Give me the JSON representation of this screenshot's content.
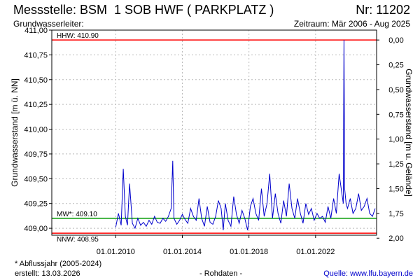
{
  "header": {
    "station_label": "Messstelle: BSM  1 SOB HWF ( PARKPLATZ )",
    "number_label": "Nr: 11202",
    "aquifer_label": "Grundwasserleiter:",
    "period_label": "Zeitraum: Mär 2006 - Aug 2025"
  },
  "footer": {
    "note": "* Abflussjahr (2005-2024)",
    "created": "erstellt:  13.03.2026",
    "raw": "- Rohdaten -",
    "source": "Quelle: www.lfu.bayern.de"
  },
  "colors": {
    "series": "#0000cc",
    "hhw_line": "#ff0000",
    "nnw_line": "#ff0000",
    "mw_line": "#009900",
    "axis": "#000000",
    "grid": "#bbbbbb"
  },
  "chart_data": {
    "type": "line",
    "title": "",
    "ylabel": "Grundwasserstand [m ü. NN]",
    "y2label": "Grundwasserstand [m u. Gelände]",
    "ylim": [
      408.93,
      411.0
    ],
    "yticks": [
      409.0,
      409.25,
      409.5,
      409.75,
      410.0,
      410.25,
      410.5,
      410.75,
      411.0
    ],
    "ytick_labels": [
      "409,00",
      "409,25",
      "409,50",
      "409,75",
      "410,00",
      "410,25",
      "410,50",
      "410,75",
      "411,00"
    ],
    "y2ticks": [
      0.0,
      0.25,
      0.5,
      0.75,
      1.0,
      1.25,
      1.5,
      1.75,
      2.0
    ],
    "y2tick_labels": [
      "0,00",
      "0,25",
      "0,50",
      "0,75",
      "1,00",
      "1,25",
      "1,50",
      "1,75",
      "2,00"
    ],
    "y2_reference": 410.9,
    "xlim": [
      "2006-03-01",
      "2025-08-31"
    ],
    "xticks": [
      "2010-01-01",
      "2014-01-01",
      "2018-01-01",
      "2022-01-01"
    ],
    "xtick_labels": [
      "01.01.2010",
      "01.01.2014",
      "01.01.2018",
      "01.01.2022"
    ],
    "grid": true,
    "reference_lines": [
      {
        "label": "HHW: 410.90",
        "value": 410.9,
        "color": "#ff0000",
        "label_position": "above-left"
      },
      {
        "label": "MW*: 409.10",
        "value": 409.1,
        "color": "#009900",
        "label_position": "above-left"
      },
      {
        "label": "NNW: 408.95",
        "value": 408.95,
        "color": "#ff0000",
        "label_position": "below-left"
      }
    ],
    "series": [
      {
        "color": "#0000cc",
        "x": [
          "2010-01-01",
          "2010-03-01",
          "2010-05-01",
          "2010-06-15",
          "2010-08-01",
          "2010-09-15",
          "2010-11-01",
          "2011-01-01",
          "2011-03-01",
          "2011-05-01",
          "2011-07-01",
          "2011-09-01",
          "2011-11-01",
          "2012-01-01",
          "2012-03-01",
          "2012-05-01",
          "2012-07-01",
          "2012-09-01",
          "2012-11-01",
          "2013-01-01",
          "2013-03-01",
          "2013-05-01",
          "2013-06-05",
          "2013-07-01",
          "2013-09-01",
          "2013-11-01",
          "2014-01-01",
          "2014-03-01",
          "2014-05-01",
          "2014-07-01",
          "2014-09-01",
          "2014-11-01",
          "2015-01-01",
          "2015-03-01",
          "2015-05-01",
          "2015-07-01",
          "2015-09-01",
          "2015-11-01",
          "2016-01-01",
          "2016-03-01",
          "2016-05-01",
          "2016-06-15",
          "2016-08-01",
          "2016-10-01",
          "2016-12-01",
          "2017-02-01",
          "2017-04-01",
          "2017-06-01",
          "2017-08-01",
          "2017-10-01",
          "2017-12-01",
          "2018-02-01",
          "2018-04-01",
          "2018-06-01",
          "2018-08-01",
          "2018-10-01",
          "2018-12-01",
          "2019-02-01",
          "2019-04-01",
          "2019-06-01",
          "2019-08-01",
          "2019-10-01",
          "2019-12-01",
          "2020-02-01",
          "2020-04-01",
          "2020-06-01",
          "2020-08-01",
          "2020-10-01",
          "2020-12-01",
          "2021-02-01",
          "2021-04-01",
          "2021-06-01",
          "2021-08-01",
          "2021-10-01",
          "2021-12-01",
          "2022-02-01",
          "2022-04-01",
          "2022-06-01",
          "2022-08-01",
          "2022-10-01",
          "2022-12-01",
          "2023-02-01",
          "2023-04-01",
          "2023-06-01",
          "2023-08-01",
          "2023-09-01",
          "2023-09-15",
          "2023-10-01",
          "2023-11-01",
          "2023-12-01",
          "2024-02-01",
          "2024-04-01",
          "2024-06-01",
          "2024-08-01",
          "2024-10-01",
          "2024-12-01",
          "2025-02-01",
          "2025-04-01",
          "2025-06-01",
          "2025-08-01"
        ],
        "values": [
          409.01,
          409.15,
          409.03,
          409.6,
          409.12,
          409.03,
          409.45,
          409.05,
          409.0,
          409.1,
          409.03,
          409.06,
          409.02,
          409.08,
          409.04,
          409.12,
          409.06,
          409.05,
          409.1,
          409.07,
          409.12,
          409.2,
          409.68,
          409.1,
          409.04,
          409.08,
          409.14,
          409.09,
          409.05,
          409.2,
          409.12,
          409.08,
          409.3,
          409.1,
          409.02,
          409.22,
          409.06,
          409.04,
          409.12,
          409.28,
          409.2,
          408.98,
          409.25,
          409.08,
          409.02,
          409.32,
          409.14,
          409.05,
          409.18,
          409.1,
          408.98,
          409.22,
          409.3,
          409.15,
          409.08,
          409.4,
          409.12,
          409.25,
          409.55,
          409.1,
          409.35,
          409.15,
          409.05,
          409.28,
          409.12,
          409.45,
          409.2,
          409.1,
          409.3,
          409.15,
          409.05,
          409.25,
          409.14,
          409.2,
          409.08,
          409.15,
          409.1,
          409.12,
          409.06,
          409.22,
          409.1,
          409.3,
          409.15,
          409.55,
          409.35,
          409.25,
          410.9,
          409.4,
          409.25,
          409.2,
          409.3,
          409.15,
          409.2,
          409.35,
          409.18,
          409.22,
          409.3,
          409.15,
          409.12,
          409.2
        ]
      }
    ]
  }
}
